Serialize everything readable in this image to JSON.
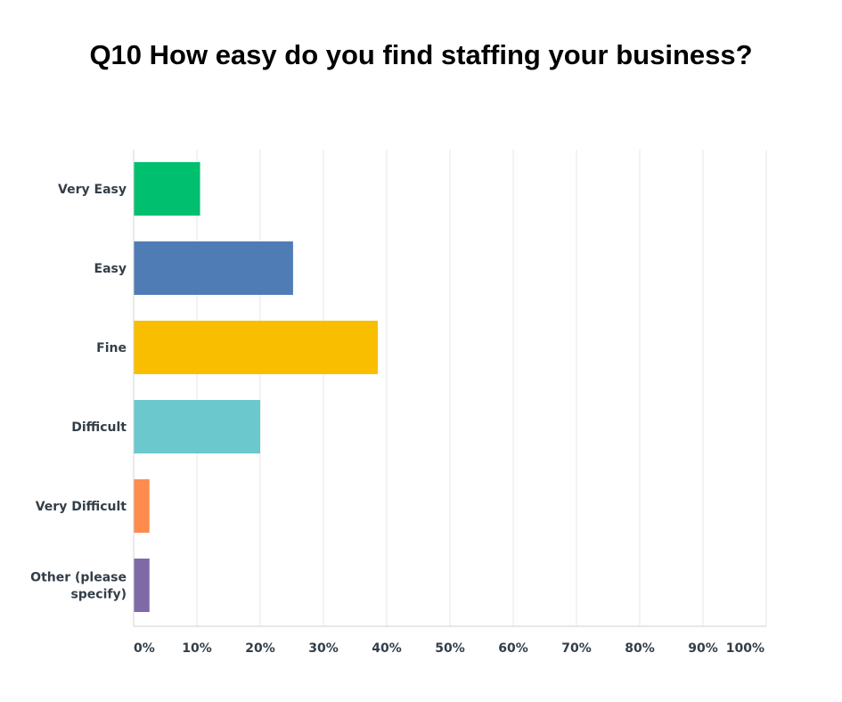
{
  "chart_data": {
    "type": "bar",
    "orientation": "horizontal",
    "title": "Q10 How easy do you find staffing your business?",
    "categories": [
      [
        "Very Easy"
      ],
      [
        "Easy"
      ],
      [
        "Fine"
      ],
      [
        "Difficult"
      ],
      [
        "Very Difficult"
      ],
      [
        "Other (please",
        "specify)"
      ]
    ],
    "values": [
      10.5,
      25.2,
      38.6,
      20.0,
      2.5,
      2.5
    ],
    "colors": [
      "#00bf6f",
      "#507cb6",
      "#f9be00",
      "#6bc8cd",
      "#ff8b4f",
      "#7f6aa8"
    ],
    "xlim": [
      0,
      100
    ],
    "x_ticks": [
      "0%",
      "10%",
      "20%",
      "30%",
      "40%",
      "50%",
      "60%",
      "70%",
      "80%",
      "90%",
      "100%"
    ],
    "grid": true
  }
}
